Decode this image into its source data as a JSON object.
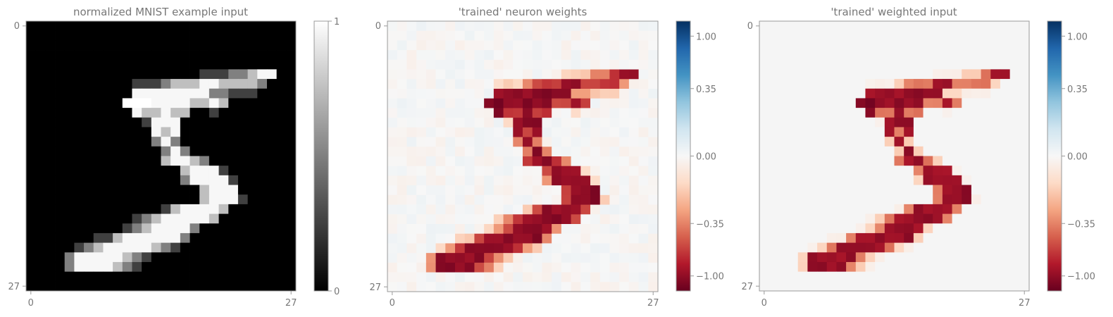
{
  "chart_data": [
    {
      "type": "heatmap",
      "title": "normalized MNIST example input",
      "xlabel": "",
      "ylabel": "",
      "x_ticks": [
        "0",
        "27"
      ],
      "y_ticks": [
        "0",
        "27"
      ],
      "grid_size": [
        28,
        28
      ],
      "colormap": "gray",
      "color_range": [
        0,
        1
      ],
      "colorbar_ticks": [
        "0",
        "1"
      ],
      "pixels_description_only": false
    },
    {
      "type": "heatmap",
      "title": "'trained' neuron weights",
      "xlabel": "",
      "ylabel": "",
      "x_ticks": [
        "0",
        "27"
      ],
      "y_ticks": [
        "0",
        "27"
      ],
      "grid_size": [
        28,
        28
      ],
      "colormap": "RdBu",
      "color_range": [
        -1.35,
        1.35
      ],
      "colorbar_ticks": [
        "1.00",
        "0.35",
        "0.00",
        "−0.35",
        "−1.00"
      ]
    },
    {
      "type": "heatmap",
      "title": "'trained' weighted input",
      "xlabel": "",
      "ylabel": "",
      "x_ticks": [
        "0",
        "27"
      ],
      "y_ticks": [
        "0",
        "27"
      ],
      "grid_size": [
        28,
        28
      ],
      "colormap": "RdBu",
      "color_range": [
        -1.35,
        1.35
      ],
      "colorbar_ticks": [
        "1.00",
        "0.35",
        "0.00",
        "−0.35",
        "−1.00"
      ]
    }
  ],
  "digit": [
    "............................",
    "............................",
    "............................",
    "............................",
    "............................",
    "..................aaabbcdd..",
    "...........aaabcccddccccb...",
    "...........ddddddddbbaaa....",
    "..........eeeddddccdc.......",
    "...........dccdcc..a........",
    "............addd............",
    ".............dcd............",
    ".............bdb............",
    "..............bdb...........",
    "..............cddcb.........",
    "................cddda.......",
    "................bdddda......",
    "..................cddd......",
    "..................cddda.....",
    "..............acddddc.......",
    "...........abcdddddc........",
    "..........abcddddb..........",
    ".......aacddddddb...........",
    ".....abcdddddcba............",
    "....bdddddcba...............",
    "....bddddcba................",
    "............................",
    "............................"
  ],
  "colors": {
    "axis_frame": "#999999",
    "text": "#777777",
    "weighted_background": "#f5f5f5"
  }
}
